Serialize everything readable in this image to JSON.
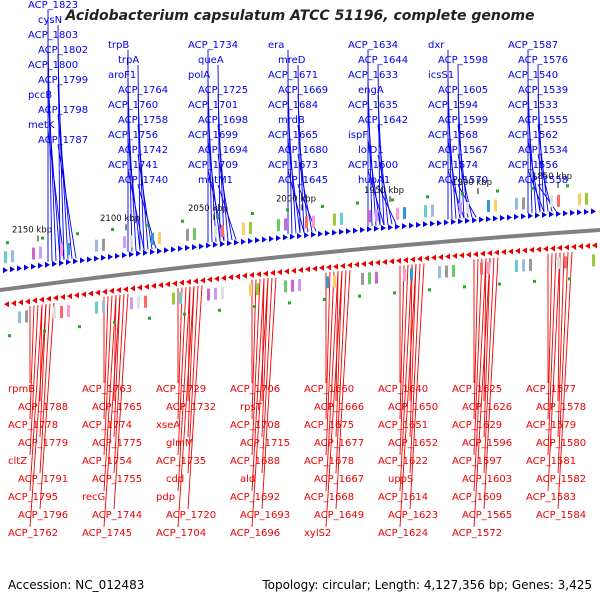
{
  "title": "Acidobacterium capsulatum ATCC 51196, complete genome",
  "footer": {
    "accession_label": "Accession:",
    "accession": "NC_012483",
    "topology_label": "Topology:",
    "topology": "circular",
    "length_label": "Length:",
    "length": "4,127,356 bp",
    "genes_label": "Genes:",
    "genes": "3,425"
  },
  "colors": {
    "forward_strand": "#0000ee",
    "reverse_strand": "#ee0000",
    "backbone": "#808080",
    "cog_marker": "#22aa22"
  },
  "ticks": [
    "2150 kbp",
    "2100 kbp",
    "2050 kbp",
    "2000 kbp",
    "1950 kbp",
    "1900 kbp",
    "1850 kbp"
  ],
  "forward_labels": [
    "ACP_1823",
    "cysN",
    "ACP_1803",
    "ACP_1802",
    "ACP_1800",
    "ACP_1799",
    "pccB",
    "ACP_1798",
    "metK",
    "ACP_1787",
    "trpB",
    "trpA",
    "aroF1",
    "ACP_1764",
    "ACP_1760",
    "ACP_1758",
    "ACP_1756",
    "ACP_1742",
    "ACP_1741",
    "ACP_1740",
    "ACP_1734",
    "queA",
    "polA",
    "ACP_1725",
    "ACP_1701",
    "ACP_1698",
    "ACP_1699",
    "ACP_1694",
    "ACP_1709",
    "mutM1",
    "era",
    "mreD",
    "ACP_1671",
    "ACP_1669",
    "ACP_1684",
    "mrdB",
    "ACP_1665",
    "ACP_1680",
    "ACP_1673",
    "ACP_1645",
    "ACP_1634",
    "ACP_1644",
    "ACP_1633",
    "engA",
    "ACP_1635",
    "ACP_1642",
    "ispF",
    "lolD1",
    "ACP_1600",
    "hupA1",
    "dxr",
    "ACP_1598",
    "icsS1",
    "ACP_1605",
    "ACP_1594",
    "ACP_1599",
    "ACP_1568",
    "ACP_1567",
    "ACP_1574",
    "ACP_1570",
    "ACP_1587",
    "ACP_1576",
    "ACP_1540",
    "ACP_1539",
    "ACP_1533",
    "ACP_1555",
    "ACP_1562",
    "ACP_1534",
    "ACP_1556",
    "ACP_1558"
  ],
  "reverse_labels": [
    "rpmB",
    "ACP_1788",
    "ACP_1778",
    "ACP_1779",
    "cltZ",
    "ACP_1791",
    "ACP_1795",
    "ACP_1796",
    "ACP_1762",
    "ACP_1763",
    "ACP_1765",
    "ACP_1774",
    "ACP_1775",
    "ACP_1754",
    "ACP_1755",
    "recG",
    "ACP_1744",
    "ACP_1745",
    "ACP_1729",
    "ACP_1732",
    "xseA",
    "glmM",
    "ACP_1735",
    "cdd",
    "pdp",
    "ACP_1720",
    "ACP_1704",
    "ACP_1706",
    "rpsT",
    "ACP_1708",
    "ACP_1715",
    "ACP_1688",
    "ald",
    "ACP_1692",
    "ACP_1693",
    "ACP_1696",
    "ACP_1660",
    "ACP_1666",
    "ACP_1675",
    "ACP_1677",
    "ACP_1678",
    "ACP_1667",
    "ACP_1668",
    "ACP_1649",
    "xylS2",
    "ACP_1640",
    "ACP_1650",
    "ACP_1651",
    "ACP_1652",
    "ACP_1622",
    "uppS",
    "ACP_1614",
    "ACP_1623",
    "ACP_1624",
    "ACP_1625",
    "ACP_1626",
    "ACP_1629",
    "ACP_1596",
    "ACP_1597",
    "ACP_1603",
    "ACP_1609",
    "ACP_1565",
    "ACP_1572",
    "ACP_1577",
    "ACP_1578",
    "ACP_1579",
    "ACP_1580",
    "ACP_1581",
    "ACP_1582",
    "ACP_1583",
    "ACP_1584"
  ]
}
